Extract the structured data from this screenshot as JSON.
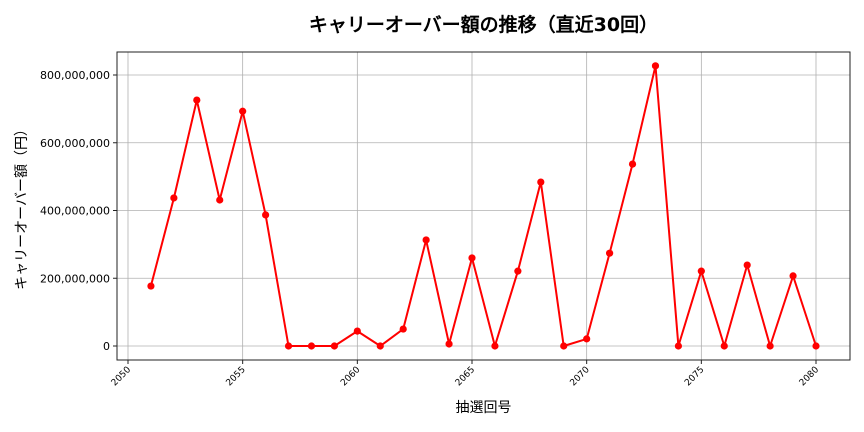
{
  "chart_data": {
    "type": "line",
    "title": "キャリーオーバー額の推移（直近30回）",
    "xlabel": "抽選回号",
    "ylabel": "キャリーオーバー額（円）",
    "x": [
      2051,
      2052,
      2053,
      2054,
      2055,
      2056,
      2057,
      2058,
      2059,
      2060,
      2061,
      2062,
      2063,
      2064,
      2065,
      2066,
      2067,
      2068,
      2069,
      2070,
      2071,
      2072,
      2073,
      2074,
      2075,
      2076,
      2077,
      2078,
      2079,
      2080
    ],
    "series": [
      {
        "name": "キャリーオーバー額",
        "color": "#ff0000",
        "marker": "circle",
        "values": [
          177000000,
          437000000,
          726000000,
          431000000,
          693000000,
          387000000,
          0,
          0,
          0,
          44000000,
          0,
          50000000,
          313000000,
          6000000,
          260000000,
          0,
          221000000,
          484000000,
          0,
          21000000,
          274000000,
          537000000,
          827000000,
          0,
          221000000,
          0,
          239000000,
          0,
          207000000,
          0
        ]
      }
    ],
    "xticks": [
      2050,
      2055,
      2060,
      2065,
      2070,
      2075,
      2080
    ],
    "xtick_labels": [
      "2050",
      "2055",
      "2060",
      "2065",
      "2070",
      "2075",
      "2080"
    ],
    "yticks": [
      0,
      200000000,
      400000000,
      600000000,
      800000000
    ],
    "ytick_labels": [
      "0",
      "200,000,000",
      "400,000,000",
      "600,000,000",
      "800,000,000"
    ],
    "xlim": [
      2049.5,
      2081.5
    ],
    "ylim": [
      -41000000,
      868000000
    ],
    "grid": true,
    "legend": null
  }
}
